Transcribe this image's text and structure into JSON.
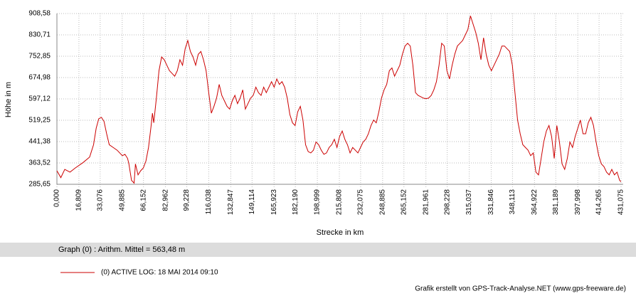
{
  "chart_data": {
    "type": "line",
    "y_label": "Höhe  in  m",
    "x_label": "Strecke  in  km",
    "summary": "Graph (0) :  Arithm. Mittel = 563,48 m",
    "footer": "Grafik erstellt von GPS-Track-Analyse.NET (www.gps-freeware.de)",
    "grid": true,
    "xlim": [
      0,
      431.075
    ],
    "ylim": [
      285.65,
      908.58
    ],
    "yticks": [
      {
        "value": 285.65,
        "label": "285,65"
      },
      {
        "value": 363.52,
        "label": "363,52"
      },
      {
        "value": 441.38,
        "label": "441,38"
      },
      {
        "value": 519.25,
        "label": "519,25"
      },
      {
        "value": 597.12,
        "label": "597,12"
      },
      {
        "value": 674.98,
        "label": "674,98"
      },
      {
        "value": 752.85,
        "label": "752,85"
      },
      {
        "value": 830.71,
        "label": "830,71"
      },
      {
        "value": 908.58,
        "label": "908,58"
      }
    ],
    "xticks": [
      {
        "value": 0,
        "label": "0,000"
      },
      {
        "value": 16.809,
        "label": "16,809"
      },
      {
        "value": 33.076,
        "label": "33,076"
      },
      {
        "value": 49.885,
        "label": "49,885"
      },
      {
        "value": 66.152,
        "label": "66,152"
      },
      {
        "value": 82.962,
        "label": "82,962"
      },
      {
        "value": 99.228,
        "label": "99,228"
      },
      {
        "value": 116.038,
        "label": "116,038"
      },
      {
        "value": 132.847,
        "label": "132,847"
      },
      {
        "value": 149.114,
        "label": "149,114"
      },
      {
        "value": 165.923,
        "label": "165,923"
      },
      {
        "value": 182.19,
        "label": "182,190"
      },
      {
        "value": 198.999,
        "label": "198,999"
      },
      {
        "value": 215.808,
        "label": "215,808"
      },
      {
        "value": 232.075,
        "label": "232,075"
      },
      {
        "value": 248.885,
        "label": "248,885"
      },
      {
        "value": 265.152,
        "label": "265,152"
      },
      {
        "value": 281.961,
        "label": "281,961"
      },
      {
        "value": 298.228,
        "label": "298,228"
      },
      {
        "value": 315.037,
        "label": "315,037"
      },
      {
        "value": 331.846,
        "label": "331,846"
      },
      {
        "value": 348.113,
        "label": "348,113"
      },
      {
        "value": 364.922,
        "label": "364,922"
      },
      {
        "value": 381.189,
        "label": "381,189"
      },
      {
        "value": 397.998,
        "label": "397,998"
      },
      {
        "value": 414.265,
        "label": "414,265"
      },
      {
        "value": 431.075,
        "label": "431,075"
      }
    ],
    "x": [
      0,
      3,
      6,
      10,
      14,
      20,
      25,
      28,
      30,
      32,
      34,
      36,
      38,
      40,
      43,
      46,
      48,
      50,
      52,
      54,
      55,
      57,
      59,
      60,
      62,
      64,
      66,
      68,
      70,
      72,
      73,
      74,
      76,
      78,
      80,
      82,
      84,
      86,
      88,
      90,
      92,
      94,
      96,
      98,
      100,
      102,
      104,
      106,
      108,
      110,
      112,
      114,
      116,
      118,
      120,
      122,
      124,
      126,
      128,
      130,
      132,
      134,
      136,
      138,
      140,
      142,
      144,
      146,
      148,
      150,
      152,
      154,
      156,
      158,
      160,
      162,
      164,
      166,
      168,
      170,
      172,
      174,
      176,
      178,
      180,
      182,
      184,
      186,
      188,
      190,
      192,
      194,
      196,
      198,
      200,
      202,
      204,
      206,
      208,
      210,
      212,
      214,
      216,
      218,
      220,
      222,
      224,
      226,
      228,
      230,
      232,
      234,
      236,
      238,
      240,
      242,
      244,
      246,
      248,
      250,
      252,
      254,
      256,
      258,
      260,
      262,
      264,
      266,
      268,
      270,
      272,
      274,
      276,
      278,
      280,
      282,
      284,
      286,
      288,
      290,
      292,
      294,
      296,
      298,
      300,
      302,
      304,
      306,
      308,
      310,
      312,
      314,
      316,
      318,
      320,
      322,
      324,
      326,
      328,
      330,
      332,
      334,
      336,
      338,
      340,
      342,
      344,
      346,
      348,
      350,
      352,
      354,
      356,
      358,
      360,
      362,
      364,
      366,
      368,
      370,
      372,
      374,
      376,
      378,
      380,
      382,
      384,
      386,
      388,
      390,
      392,
      394,
      396,
      398,
      400,
      402,
      404,
      406,
      408,
      410,
      412,
      414,
      416,
      418,
      420,
      422,
      424,
      426,
      428,
      430,
      431
    ],
    "series": [
      {
        "name": "(0) ACTIVE LOG: 18 MAI 2014 09:10",
        "color": "#cc0000",
        "values": [
          335,
          310,
          340,
          330,
          345,
          365,
          385,
          430,
          490,
          525,
          530,
          515,
          470,
          430,
          420,
          410,
          400,
          390,
          395,
          380,
          360,
          300,
          290,
          360,
          320,
          335,
          345,
          370,
          420,
          500,
          545,
          510,
          600,
          700,
          750,
          740,
          720,
          700,
          690,
          680,
          700,
          740,
          720,
          780,
          810,
          770,
          750,
          720,
          760,
          770,
          740,
          700,
          620,
          545,
          570,
          600,
          650,
          610,
          590,
          570,
          560,
          590,
          610,
          580,
          600,
          630,
          560,
          580,
          600,
          610,
          640,
          620,
          610,
          640,
          620,
          640,
          660,
          640,
          670,
          650,
          660,
          640,
          600,
          540,
          510,
          500,
          550,
          570,
          520,
          430,
          405,
          400,
          410,
          440,
          430,
          410,
          395,
          400,
          420,
          430,
          450,
          420,
          460,
          480,
          450,
          430,
          400,
          420,
          410,
          400,
          420,
          440,
          450,
          470,
          500,
          520,
          510,
          550,
          600,
          630,
          650,
          700,
          710,
          680,
          700,
          720,
          760,
          790,
          800,
          790,
          720,
          620,
          610,
          605,
          600,
          598,
          600,
          610,
          630,
          660,
          720,
          800,
          790,
          700,
          670,
          720,
          760,
          790,
          800,
          810,
          830,
          850,
          900,
          870,
          840,
          800,
          740,
          820,
          760,
          720,
          700,
          720,
          740,
          760,
          790,
          790,
          780,
          770,
          720,
          620,
          520,
          470,
          430,
          420,
          410,
          390,
          400,
          330,
          320,
          380,
          440,
          480,
          500,
          460,
          380,
          500,
          440,
          360,
          340,
          380,
          440,
          420,
          460,
          490,
          520,
          470,
          470,
          510,
          530,
          500,
          440,
          390,
          360,
          350,
          330,
          320,
          340,
          320,
          330,
          300,
          295
        ]
      }
    ]
  }
}
